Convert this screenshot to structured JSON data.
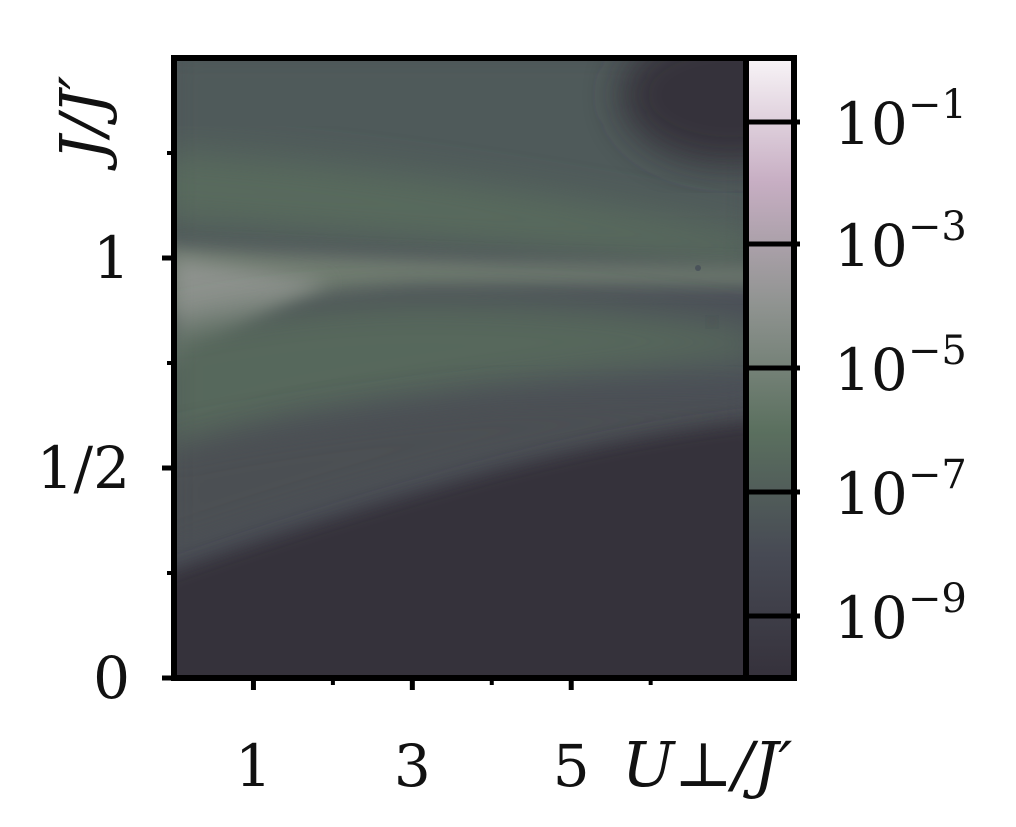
{
  "chart_data": {
    "type": "heatmap",
    "xlabel": "U⊥/J′",
    "ylabel": "J/J′",
    "xlim": [
      0,
      7.2
    ],
    "ylim": [
      0,
      1.0
    ],
    "x_ticks": [
      {
        "value": 1,
        "label": "1"
      },
      {
        "value": 3,
        "label": "3"
      },
      {
        "value": 5,
        "label": "5"
      }
    ],
    "x_minor_ticks": [
      2,
      4,
      6
    ],
    "y_ticks": [
      {
        "value": 0,
        "label": "0"
      },
      {
        "value": 0.5,
        "label": "1/2"
      },
      {
        "value": 1,
        "label": "1"
      }
    ],
    "y_minor_ticks": [
      0.25,
      0.75,
      1.25
    ],
    "color_scale": "log",
    "colorbar": {
      "range_log10": [
        -10,
        0
      ],
      "ticks": [
        {
          "exp": -1,
          "base": "10",
          "sup": "−1"
        },
        {
          "exp": -3,
          "base": "10",
          "sup": "−3"
        },
        {
          "exp": -5,
          "base": "10",
          "sup": "−5"
        },
        {
          "exp": -7,
          "base": "10",
          "sup": "−7"
        },
        {
          "exp": -9,
          "base": "10",
          "sup": "−9"
        }
      ],
      "colors_by_log10": [
        {
          "at": -10,
          "color": "#35313b"
        },
        {
          "at": -8,
          "color": "#474a54"
        },
        {
          "at": -6,
          "color": "#5b705f"
        },
        {
          "at": -4,
          "color": "#8f9390"
        },
        {
          "at": -2,
          "color": "#c7aec3"
        },
        {
          "at": 0,
          "color": "#f8f4f7"
        }
      ]
    },
    "field_description": "log10 value is lowest (≈ -10) for small J/J′ and at large U⊥/J′ with J/J′ < 0.5; a bright ridge (≈ -5 to -6) runs along J/J′ ≈ 1; intermediate values (≈ -7 to -8) fill the band between J/J′ ≈ 0.3 and 1.35"
  }
}
